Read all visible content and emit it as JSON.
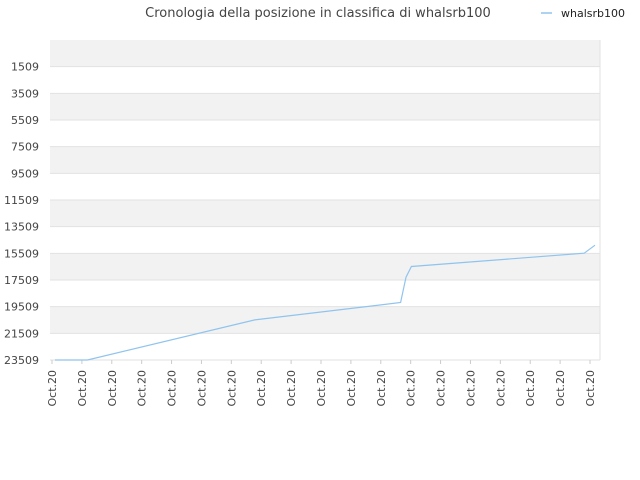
{
  "chart_data": {
    "type": "line",
    "title": "Cronologia della posizione in classifica di whalsrb100",
    "xlabel": "",
    "ylabel": "",
    "ylim": [
      23509,
      -491
    ],
    "y_inverted": true,
    "y_ticks": [
      1509,
      3509,
      5509,
      7509,
      9509,
      11509,
      13509,
      15509,
      17509,
      19509,
      21509,
      23509
    ],
    "x_tick_labels": [
      "Oct.20",
      "Oct.20",
      "Oct.20",
      "Oct.20",
      "Oct.20",
      "Oct.20",
      "Oct.20",
      "Oct.20",
      "Oct.20",
      "Oct.20",
      "Oct.20",
      "Oct.20",
      "Oct.20",
      "Oct.20",
      "Oct.20",
      "Oct.20",
      "Oct.20",
      "Oct.20",
      "Oct.20"
    ],
    "x_range": [
      0,
      1
    ],
    "grid": true,
    "legend_position": "top-right",
    "series": [
      {
        "name": "whalsrb100",
        "color": "#90c4ee",
        "points": [
          [
            0.0,
            23509
          ],
          [
            0.06,
            23509
          ],
          [
            0.37,
            20500
          ],
          [
            0.64,
            19200
          ],
          [
            0.65,
            17300
          ],
          [
            0.66,
            16500
          ],
          [
            0.98,
            15500
          ],
          [
            1.0,
            14900
          ]
        ]
      }
    ]
  }
}
